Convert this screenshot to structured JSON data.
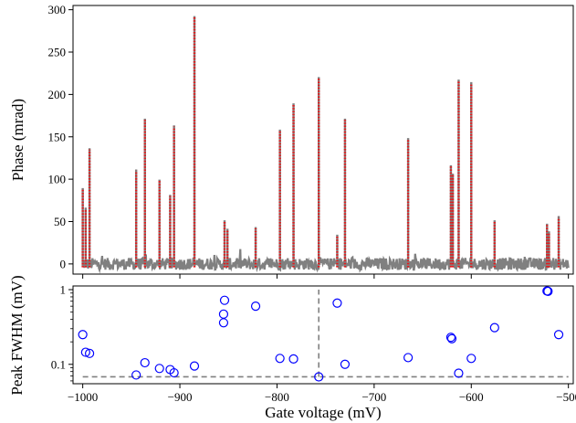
{
  "chart_data": [
    {
      "type": "line",
      "ylabel": "Phase (mrad)",
      "xlim": [
        -1010,
        -495
      ],
      "ylim": [
        -12,
        305
      ],
      "yticks": [
        0,
        50,
        100,
        150,
        200,
        250,
        300
      ],
      "grid": false,
      "baseline_color": "#808080",
      "peak_color": "#e41a1c",
      "peaks": [
        {
          "x": -1000,
          "y": 88
        },
        {
          "x": -997,
          "y": 65
        },
        {
          "x": -993,
          "y": 135
        },
        {
          "x": -945,
          "y": 110
        },
        {
          "x": -936,
          "y": 170
        },
        {
          "x": -921,
          "y": 98
        },
        {
          "x": -910,
          "y": 80
        },
        {
          "x": -906,
          "y": 162
        },
        {
          "x": -885,
          "y": 291
        },
        {
          "x": -854,
          "y": 50
        },
        {
          "x": -851,
          "y": 40
        },
        {
          "x": -822,
          "y": 42
        },
        {
          "x": -797,
          "y": 157
        },
        {
          "x": -783,
          "y": 188
        },
        {
          "x": -757,
          "y": 219
        },
        {
          "x": -738,
          "y": 33
        },
        {
          "x": -730,
          "y": 170
        },
        {
          "x": -665,
          "y": 147
        },
        {
          "x": -621,
          "y": 115
        },
        {
          "x": -619,
          "y": 105
        },
        {
          "x": -613,
          "y": 216
        },
        {
          "x": -600,
          "y": 213
        },
        {
          "x": -576,
          "y": 50
        },
        {
          "x": -522,
          "y": 46
        },
        {
          "x": -520,
          "y": 37
        },
        {
          "x": -510,
          "y": 55
        }
      ]
    },
    {
      "type": "scatter",
      "xlabel": "Gate voltage (mV)",
      "ylabel": "Peak FWHM (mV)",
      "yscale": "log",
      "xlim": [
        -1010,
        -495
      ],
      "ylim": [
        0.055,
        1.12
      ],
      "xticks": [
        -1000,
        -900,
        -800,
        -700,
        -600,
        -500
      ],
      "xtick_labels": [
        "−1000",
        "−900",
        "−800",
        "−700",
        "−600",
        "−500"
      ],
      "yticks": [
        0.1,
        1
      ],
      "ytick_labels": [
        "0.1",
        "1"
      ],
      "marker_color": "#0000ff",
      "reference_color": "#808080",
      "hline_y": 0.068,
      "hline_xrange": [
        -1000,
        -500
      ],
      "vline_x": -757,
      "vline_yrange": [
        0.068,
        1.0
      ],
      "points": [
        {
          "x": -1000,
          "y": 0.25
        },
        {
          "x": -997,
          "y": 0.145
        },
        {
          "x": -993,
          "y": 0.14
        },
        {
          "x": -945,
          "y": 0.072
        },
        {
          "x": -936,
          "y": 0.105
        },
        {
          "x": -921,
          "y": 0.088
        },
        {
          "x": -910,
          "y": 0.085
        },
        {
          "x": -906,
          "y": 0.077
        },
        {
          "x": -885,
          "y": 0.095
        },
        {
          "x": -854,
          "y": 0.72
        },
        {
          "x": -855,
          "y": 0.47
        },
        {
          "x": -855,
          "y": 0.36
        },
        {
          "x": -822,
          "y": 0.6
        },
        {
          "x": -797,
          "y": 0.12
        },
        {
          "x": -783,
          "y": 0.118
        },
        {
          "x": -757,
          "y": 0.068
        },
        {
          "x": -738,
          "y": 0.66
        },
        {
          "x": -730,
          "y": 0.1
        },
        {
          "x": -665,
          "y": 0.123
        },
        {
          "x": -621,
          "y": 0.23
        },
        {
          "x": -620,
          "y": 0.22
        },
        {
          "x": -613,
          "y": 0.076
        },
        {
          "x": -600,
          "y": 0.12
        },
        {
          "x": -576,
          "y": 0.31
        },
        {
          "x": -522,
          "y": 0.96
        },
        {
          "x": -521,
          "y": 0.95
        },
        {
          "x": -510,
          "y": 0.25
        }
      ]
    }
  ]
}
